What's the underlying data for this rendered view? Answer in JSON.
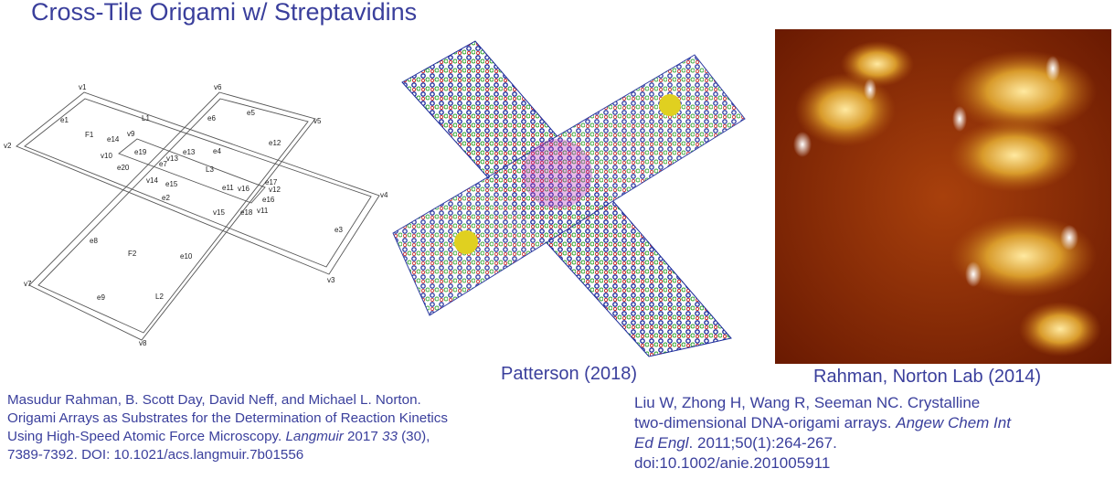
{
  "header": {
    "title": "Cross-Tile Origami w/ Streptavidins"
  },
  "diagram": {
    "labels": [
      "v1",
      "v6",
      "v5",
      "v2",
      "v4",
      "v3",
      "v7",
      "v8",
      "v9",
      "v10",
      "v13",
      "v14",
      "v12",
      "v16",
      "v11",
      "v15",
      "e1",
      "e5",
      "e6",
      "e12",
      "e14",
      "e19",
      "e13",
      "e4",
      "e20",
      "e7",
      "e15",
      "e11",
      "e17",
      "e2",
      "e16",
      "e18",
      "e3",
      "e8",
      "e10",
      "e9",
      "F1",
      "F2",
      "L1",
      "L3",
      "L2"
    ]
  },
  "captions": {
    "middle": "Patterson (2018)",
    "right": "Rahman, Norton Lab (2014)"
  },
  "references": {
    "left": [
      [
        "Masudur Rahman, B. Scott Day, David Neff, and Michael L. Norton."
      ],
      [
        "Origami Arrays as Substrates for the Determination of Reaction Kinetics"
      ],
      [
        "Using High-Speed Atomic Force Microscopy. ",
        "Langmuir",
        " 2017 ",
        "33",
        " (30),"
      ],
      [
        "7389-7392.  DOI: 10.1021/acs.langmuir.7b01556"
      ]
    ],
    "right": [
      [
        "Liu W, Zhong H, Wang R, Seeman NC. Crystalline"
      ],
      [
        "two-dimensional DNA-origami arrays. ",
        "Angew Chem Int"
      ],
      [
        "Ed Engl",
        ". 2011;50(1):264-267."
      ],
      [
        "doi:10.1002/anie.201005911"
      ]
    ]
  }
}
